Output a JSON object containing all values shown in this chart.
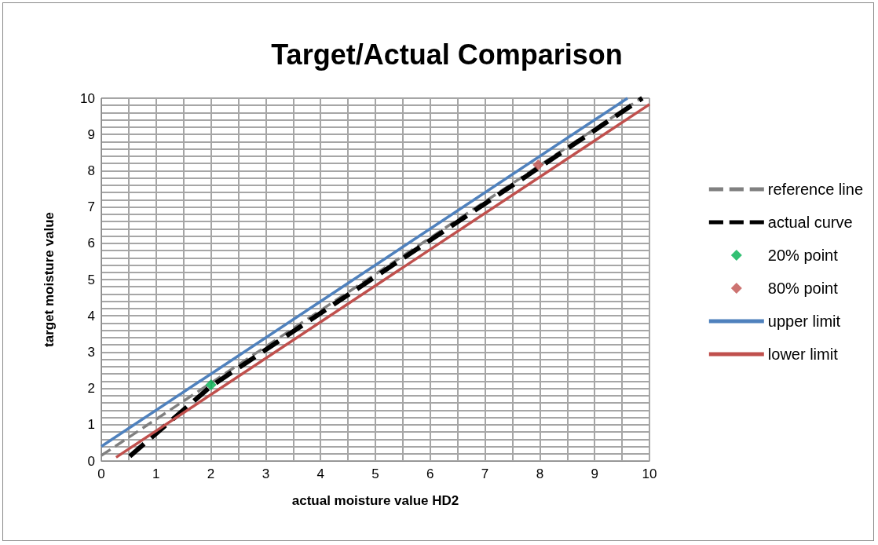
{
  "chart_data": {
    "type": "line",
    "title": "Target/Actual Comparison",
    "xlabel": "actual moisture value HD2",
    "ylabel": "target moisture value",
    "xlim": [
      0,
      10
    ],
    "ylim": [
      0,
      10
    ],
    "xticks": [
      0,
      {
        "value": 0.5,
        "label": null
      },
      1,
      {
        "value": 1.5,
        "label": null
      },
      2,
      {
        "value": 2.5,
        "label": null
      },
      3,
      {
        "value": 3.5,
        "label": null
      },
      4,
      {
        "value": 4.5,
        "label": null
      },
      5,
      {
        "value": 5.5,
        "label": null
      },
      6,
      {
        "value": 6.5,
        "label": null
      },
      7,
      {
        "value": 7.5,
        "label": null
      },
      8,
      {
        "value": 8.5,
        "label": null
      },
      9,
      {
        "value": 9.5,
        "label": null
      },
      10
    ],
    "yticks": [
      0,
      {
        "value": 0.2,
        "label": null
      },
      {
        "value": 0.4,
        "label": null
      },
      {
        "value": 0.6,
        "label": null
      },
      {
        "value": 0.8,
        "label": null
      },
      1,
      {
        "value": 1.2,
        "label": null
      },
      {
        "value": 1.4,
        "label": null
      },
      {
        "value": 1.6,
        "label": null
      },
      {
        "value": 1.8,
        "label": null
      },
      2,
      {
        "value": 2.2,
        "label": null
      },
      {
        "value": 2.4,
        "label": null
      },
      {
        "value": 2.6,
        "label": null
      },
      {
        "value": 2.8,
        "label": null
      },
      3,
      {
        "value": 3.2,
        "label": null
      },
      {
        "value": 3.4,
        "label": null
      },
      {
        "value": 3.6,
        "label": null
      },
      {
        "value": 3.8,
        "label": null
      },
      4,
      {
        "value": 4.2,
        "label": null
      },
      {
        "value": 4.4,
        "label": null
      },
      {
        "value": 4.6,
        "label": null
      },
      {
        "value": 4.8,
        "label": null
      },
      5,
      {
        "value": 5.2,
        "label": null
      },
      {
        "value": 5.4,
        "label": null
      },
      {
        "value": 5.6,
        "label": null
      },
      {
        "value": 5.8,
        "label": null
      },
      6,
      {
        "value": 6.2,
        "label": null
      },
      {
        "value": 6.4,
        "label": null
      },
      {
        "value": 6.6,
        "label": null
      },
      {
        "value": 6.8,
        "label": null
      },
      7,
      {
        "value": 7.2,
        "label": null
      },
      {
        "value": 7.4,
        "label": null
      },
      {
        "value": 7.6,
        "label": null
      },
      {
        "value": 7.8,
        "label": null
      },
      8,
      {
        "value": 8.2,
        "label": null
      },
      {
        "value": 8.4,
        "label": null
      },
      {
        "value": 8.6,
        "label": null
      },
      {
        "value": 8.8,
        "label": null
      },
      9,
      {
        "value": 9.2,
        "label": null
      },
      {
        "value": 9.4,
        "label": null
      },
      {
        "value": 9.6,
        "label": null
      },
      {
        "value": 9.8,
        "label": null
      },
      10
    ],
    "grid": true,
    "legend": "right",
    "series": [
      {
        "name": "reference line",
        "color": "#808080",
        "line_style": "dashed",
        "marker": "none",
        "x": [
          0,
          9.8
        ],
        "values": [
          0.15,
          9.95
        ]
      },
      {
        "name": "actual curve",
        "color": "#000000",
        "line_style": "dashed",
        "marker": "none",
        "x": [
          0.52,
          2,
          8,
          9.87
        ],
        "values": [
          0.13,
          2.06,
          8.1,
          10
        ]
      },
      {
        "name": "20% point",
        "type": "scatter",
        "color": "#00b050",
        "marker": "diamond",
        "x": [
          2
        ],
        "values": [
          2.1
        ]
      },
      {
        "name": "80% point",
        "type": "scatter",
        "color": "#c0504d",
        "marker": "diamond",
        "x": [
          7.97
        ],
        "values": [
          8.16
        ]
      },
      {
        "name": "upper limit",
        "color": "#4f81bd",
        "line_style": "solid",
        "marker": "none",
        "x": [
          0,
          9.6
        ],
        "values": [
          0.4,
          10
        ]
      },
      {
        "name": "lower limit",
        "color": "#c0504d",
        "line_style": "solid",
        "marker": "none",
        "x": [
          0.27,
          10
        ],
        "values": [
          0.1,
          9.83
        ]
      }
    ]
  }
}
